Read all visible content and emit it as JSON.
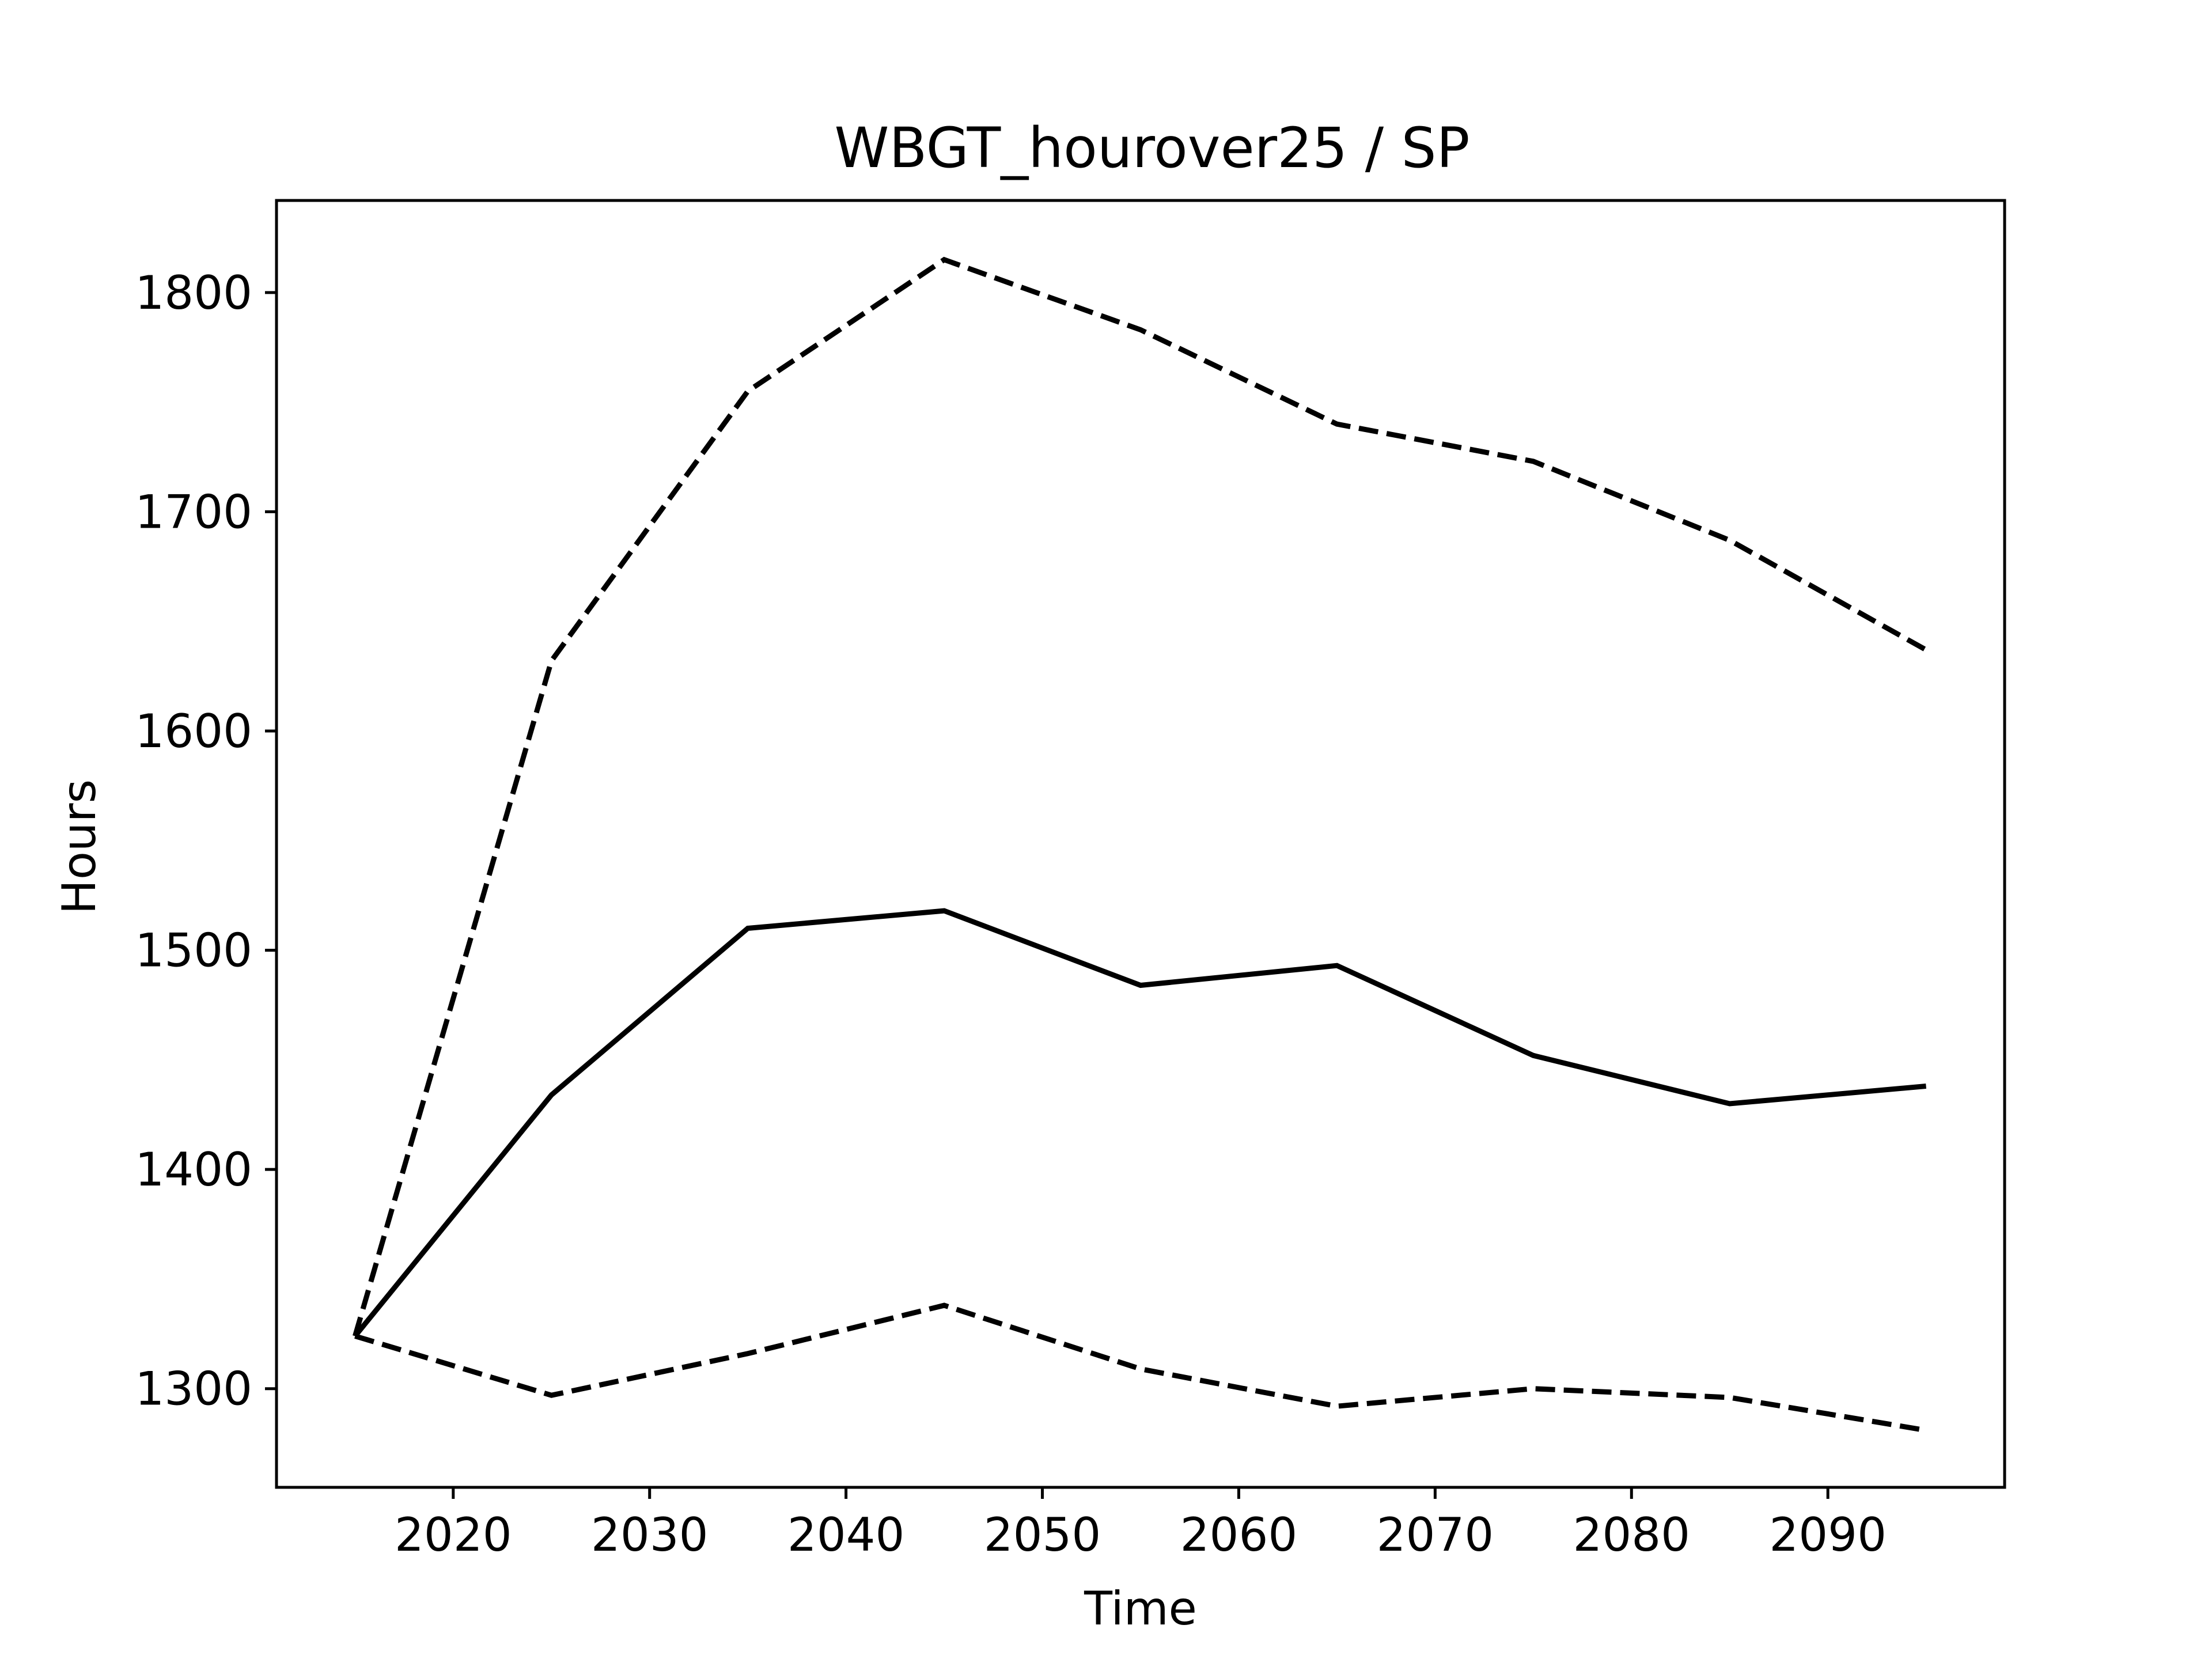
{
  "chart_data": {
    "type": "line",
    "title": "WBGT_hourover25 / SP",
    "xlabel": "Time",
    "ylabel": "Hours",
    "xlim": [
      2011,
      2099
    ],
    "ylim": [
      1255,
      1842
    ],
    "xticks": [
      2020,
      2030,
      2040,
      2050,
      2060,
      2070,
      2080,
      2090
    ],
    "yticks": [
      1300,
      1400,
      1500,
      1600,
      1700,
      1800
    ],
    "grid": false,
    "legend": "none",
    "x": [
      2015,
      2025,
      2035,
      2045,
      2055,
      2065,
      2075,
      2085,
      2095
    ],
    "series": [
      {
        "style": "dashed",
        "color": "#000000",
        "values": [
          1324,
          1632,
          1755,
          1815,
          1783,
          1740,
          1723,
          1687,
          1637
        ]
      },
      {
        "style": "solid",
        "color": "#000000",
        "values": [
          1324,
          1434,
          1510,
          1518,
          1484,
          1493,
          1452,
          1430,
          1438
        ]
      },
      {
        "style": "dashed",
        "color": "#000000",
        "values": [
          1324,
          1297,
          1316,
          1338,
          1309,
          1292,
          1300,
          1296,
          1281
        ]
      }
    ]
  }
}
